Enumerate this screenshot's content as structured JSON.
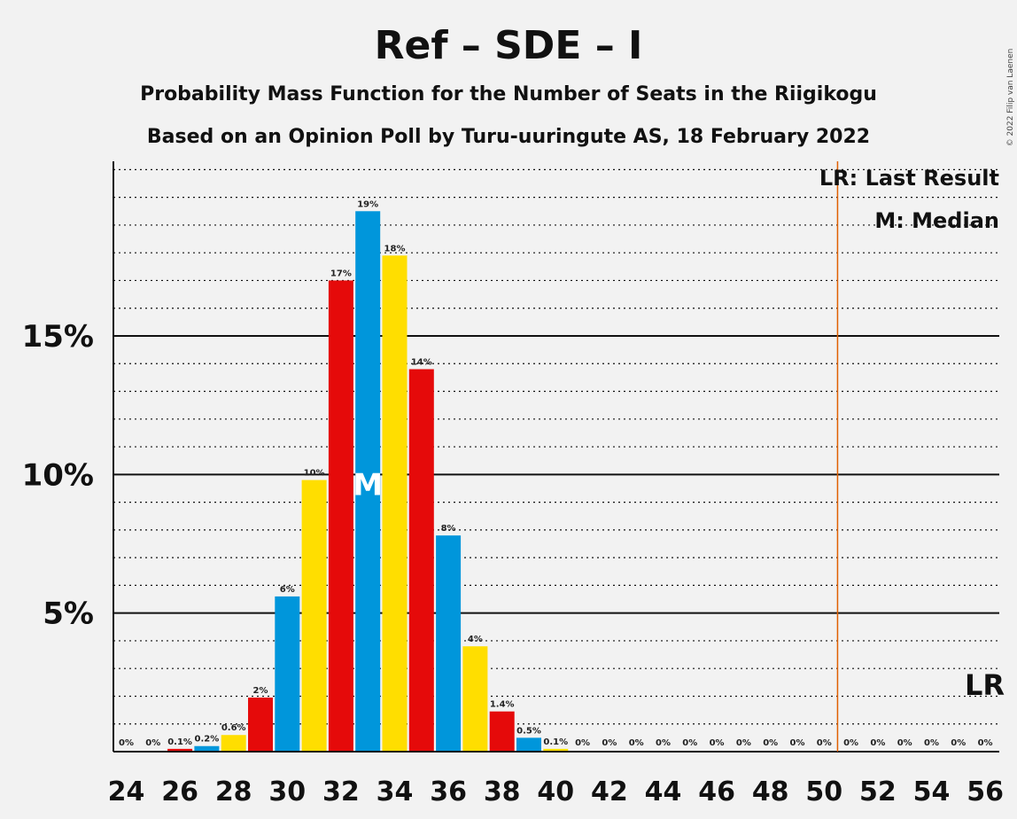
{
  "chart_data": {
    "type": "bar",
    "title": "Ref – SDE – I",
    "subtitle": "Probability Mass Function for the Number of Seats in the Riigikogu",
    "subtitle2": "Based on an Opinion Poll by Turu-uuringute AS, 18 February 2022",
    "copyright": "© 2022 Filip van Laenen",
    "x": [
      24,
      25,
      26,
      27,
      28,
      29,
      30,
      31,
      32,
      33,
      34,
      35,
      36,
      37,
      38,
      39,
      40,
      41,
      42,
      43,
      44,
      45,
      46,
      47,
      48,
      49,
      50,
      51,
      52,
      53,
      54,
      55,
      56
    ],
    "values": [
      0,
      0,
      0.1,
      0.2,
      0.6,
      1.95,
      5.6,
      9.8,
      17.0,
      19.5,
      17.9,
      13.8,
      7.8,
      3.8,
      1.45,
      0.5,
      0.1,
      0,
      0,
      0,
      0,
      0,
      0,
      0,
      0,
      0,
      0,
      0,
      0,
      0,
      0,
      0,
      0
    ],
    "labels": [
      "0%",
      "0%",
      "0.1%",
      "0.2%",
      "0.6%",
      "2%",
      "6%",
      "10%",
      "17%",
      "19%",
      "18%",
      "14%",
      "8%",
      "4%",
      "1.4%",
      "0.5%",
      "0.1%",
      "0%",
      "0%",
      "0%",
      "0%",
      "0%",
      "0%",
      "0%",
      "0%",
      "0%",
      "0%",
      "0%",
      "0%",
      "0%",
      "0%",
      "0%",
      "0%"
    ],
    "x_tick_labels": [
      "24",
      "26",
      "28",
      "30",
      "32",
      "34",
      "36",
      "38",
      "40",
      "42",
      "44",
      "46",
      "48",
      "50",
      "52",
      "54",
      "56"
    ],
    "y_ticks": [
      5,
      10,
      15
    ],
    "y_tick_labels": [
      "5%",
      "10%",
      "15%"
    ],
    "ylim": [
      0,
      21.3
    ],
    "minor_gridlines_every": 1,
    "colors": [
      "#0096db",
      "#ffde00",
      "#e50a0a"
    ],
    "median": 33,
    "median_label": "M",
    "last_result": 50.5,
    "lr_label": "LR",
    "lr_line_color": "#e06000",
    "legend": [
      "LR: Last Result",
      "M: Median"
    ],
    "legend_placement": "top-right"
  }
}
